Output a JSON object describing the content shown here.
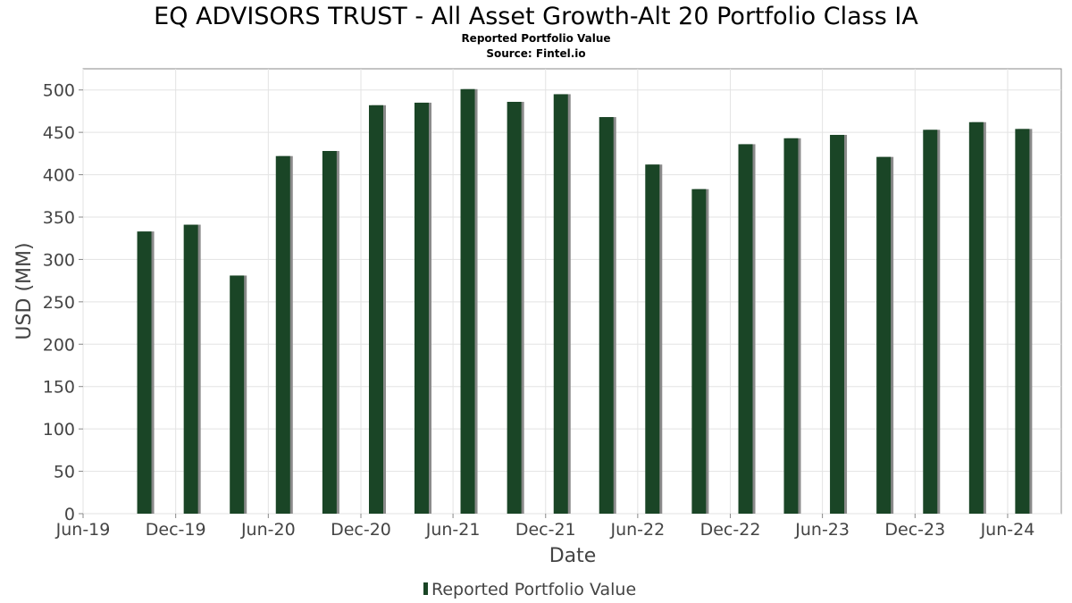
{
  "chart_data": {
    "type": "bar",
    "title": "EQ ADVISORS TRUST - All Asset Growth-Alt 20 Portfolio Class IA",
    "subtitle": "Reported Portfolio Value",
    "source": "Source: Fintel.io",
    "xlabel": "Date",
    "ylabel": "USD (MM)",
    "ylim": [
      0,
      525
    ],
    "yticks": [
      0,
      50,
      100,
      150,
      200,
      250,
      300,
      350,
      400,
      450,
      500
    ],
    "xlim": [
      "2019-06-01",
      "2024-09-15"
    ],
    "xticks": [
      {
        "date": "2019-06-01",
        "label": "Jun-19"
      },
      {
        "date": "2019-12-01",
        "label": "Dec-19"
      },
      {
        "date": "2020-06-01",
        "label": "Jun-20"
      },
      {
        "date": "2020-12-01",
        "label": "Dec-20"
      },
      {
        "date": "2021-06-01",
        "label": "Jun-21"
      },
      {
        "date": "2021-12-01",
        "label": "Dec-21"
      },
      {
        "date": "2022-06-01",
        "label": "Jun-22"
      },
      {
        "date": "2022-12-01",
        "label": "Dec-22"
      },
      {
        "date": "2023-06-01",
        "label": "Jun-23"
      },
      {
        "date": "2023-12-01",
        "label": "Dec-23"
      },
      {
        "date": "2024-06-01",
        "label": "Jun-24"
      }
    ],
    "grid": true,
    "legend_position": "bottom",
    "series": [
      {
        "name": "Reported Portfolio Value",
        "color": "#1a4526",
        "dates": [
          "2019-09-30",
          "2019-12-31",
          "2020-03-31",
          "2020-06-30",
          "2020-09-30",
          "2020-12-31",
          "2021-03-31",
          "2021-06-30",
          "2021-09-30",
          "2021-12-31",
          "2022-03-31",
          "2022-06-30",
          "2022-09-30",
          "2022-12-31",
          "2023-03-31",
          "2023-06-30",
          "2023-09-30",
          "2023-12-31",
          "2024-03-31",
          "2024-06-30"
        ],
        "values": [
          333,
          341,
          281,
          422,
          428,
          482,
          485,
          501,
          486,
          495,
          468,
          412,
          383,
          436,
          443,
          447,
          421,
          453,
          462,
          454
        ]
      }
    ]
  }
}
